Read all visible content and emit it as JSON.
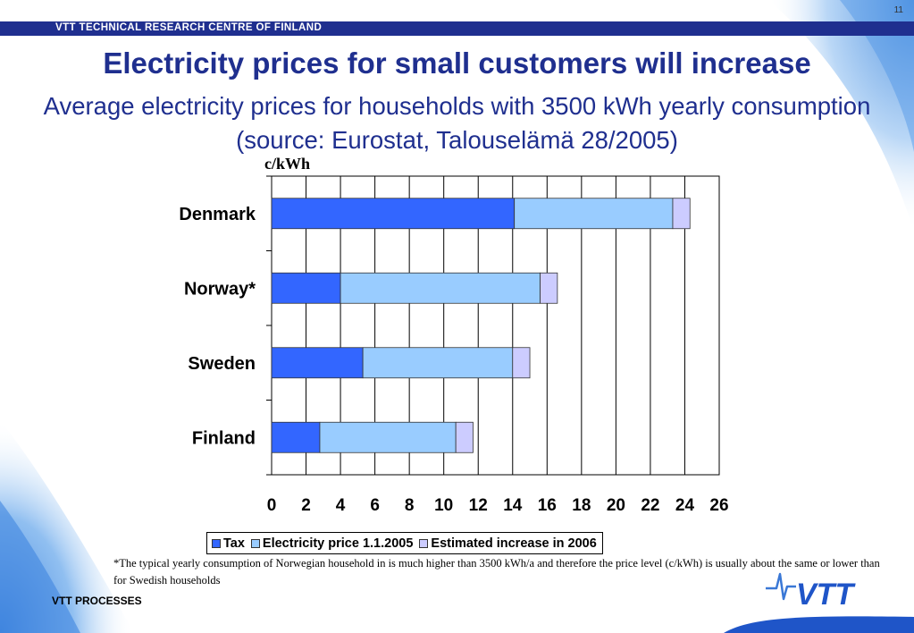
{
  "page_number": "11",
  "header": {
    "organization": "VTT TECHNICAL RESEARCH CENTRE OF FINLAND"
  },
  "title": "Electricity prices for small customers will increase",
  "subtitle": "Average electricity prices for households with 3500 kWh yearly consumption (source: Eurostat, Talouselämä 28/2005)",
  "footnote": "*The typical yearly consumption of Norwegian  household in is much higher than 3500 kWh/a and therefore the price level (c/kWh) is usually about the same or lower than for Swedish households",
  "footer": {
    "label": "VTT PROCESSES",
    "logo_text": "VTT"
  },
  "colors": {
    "brand": "#1f2f8f",
    "tax": "#3366ff",
    "electricity": "#99ccff",
    "increase": "#ccccff"
  },
  "chart_data": {
    "type": "bar",
    "orientation": "horizontal",
    "stacked": true,
    "unit_label": "c/kWh",
    "categories": [
      "Denmark",
      "Norway*",
      "Sweden",
      "Finland"
    ],
    "series": [
      {
        "name": "Tax",
        "values": [
          14.1,
          4.0,
          5.3,
          2.8
        ]
      },
      {
        "name": "Electricity price 1.1.2005",
        "values": [
          9.2,
          11.6,
          8.7,
          7.9
        ]
      },
      {
        "name": "Estimated increase in 2006",
        "values": [
          1.0,
          1.0,
          1.0,
          1.0
        ]
      }
    ],
    "xlim": [
      0,
      26
    ],
    "xticks": [
      "0",
      "2",
      "4",
      "6",
      "8",
      "10",
      "12",
      "14",
      "16",
      "18",
      "20",
      "22",
      "24",
      "26"
    ],
    "grid": true,
    "legend_position": "bottom"
  }
}
